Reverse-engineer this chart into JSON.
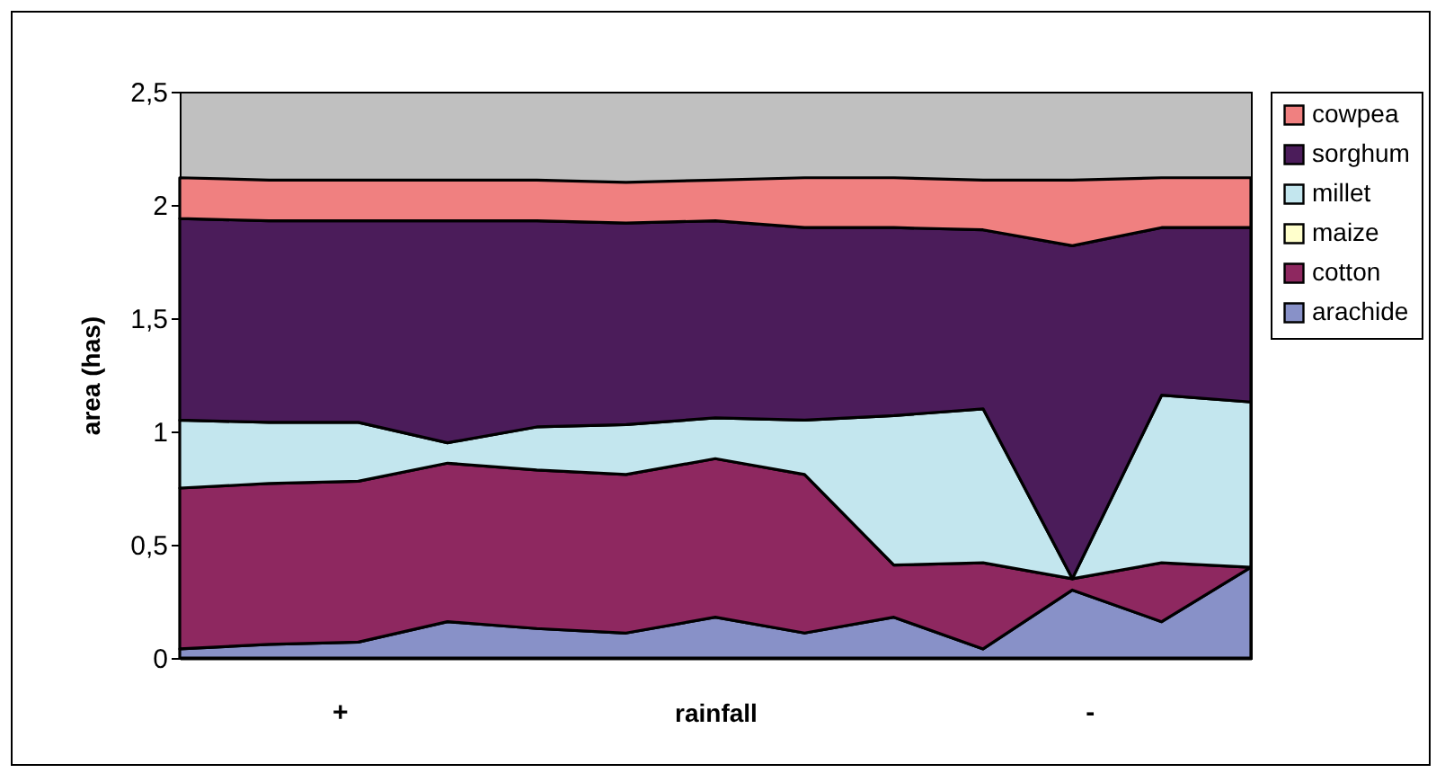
{
  "chart_data": {
    "type": "area",
    "stacked": true,
    "xlabel": "rainfall",
    "ylabel": "area (has)",
    "annotations": [
      "+",
      "-"
    ],
    "categories": [
      null,
      null,
      null,
      null,
      null,
      null,
      null,
      null,
      null,
      null,
      null,
      null,
      null
    ],
    "series": [
      {
        "name": "arachide",
        "color": "#8891c8",
        "values": [
          0.04,
          0.06,
          0.07,
          0.16,
          0.13,
          0.11,
          0.18,
          0.11,
          0.18,
          0.04,
          0.3,
          0.16,
          0.4
        ]
      },
      {
        "name": "cotton",
        "color": "#8e2860",
        "values": [
          0.71,
          0.71,
          0.71,
          0.7,
          0.7,
          0.7,
          0.7,
          0.7,
          0.23,
          0.38,
          0.05,
          0.26,
          0.0
        ]
      },
      {
        "name": "maize",
        "color": "#ffffcc",
        "values": [
          null,
          null,
          null,
          null,
          null,
          null,
          null,
          null,
          null,
          null,
          null,
          null,
          null
        ]
      },
      {
        "name": "millet",
        "color": "#c3e6ee",
        "values": [
          0.3,
          0.27,
          0.26,
          0.09,
          0.19,
          0.22,
          0.18,
          0.24,
          0.66,
          0.68,
          0.0,
          0.74,
          0.73
        ]
      },
      {
        "name": "sorghum",
        "color": "#4b1c5a",
        "values": [
          0.89,
          0.89,
          0.89,
          0.98,
          0.91,
          0.89,
          0.87,
          0.85,
          0.83,
          0.79,
          1.47,
          0.74,
          0.77
        ]
      },
      {
        "name": "cowpea",
        "color": "#f08080",
        "values": [
          0.18,
          0.18,
          0.18,
          0.18,
          0.18,
          0.18,
          0.18,
          0.22,
          0.22,
          0.22,
          0.29,
          0.22,
          0.22
        ]
      }
    ],
    "ylim": [
      0,
      2.5
    ],
    "yticks": [
      0,
      {
        "value": 0.5,
        "label": "0,5"
      },
      1,
      {
        "value": 1.5,
        "label": "1,5"
      },
      2,
      {
        "value": 2.5,
        "label": "2,5"
      }
    ],
    "grid": false,
    "legend": "right"
  }
}
